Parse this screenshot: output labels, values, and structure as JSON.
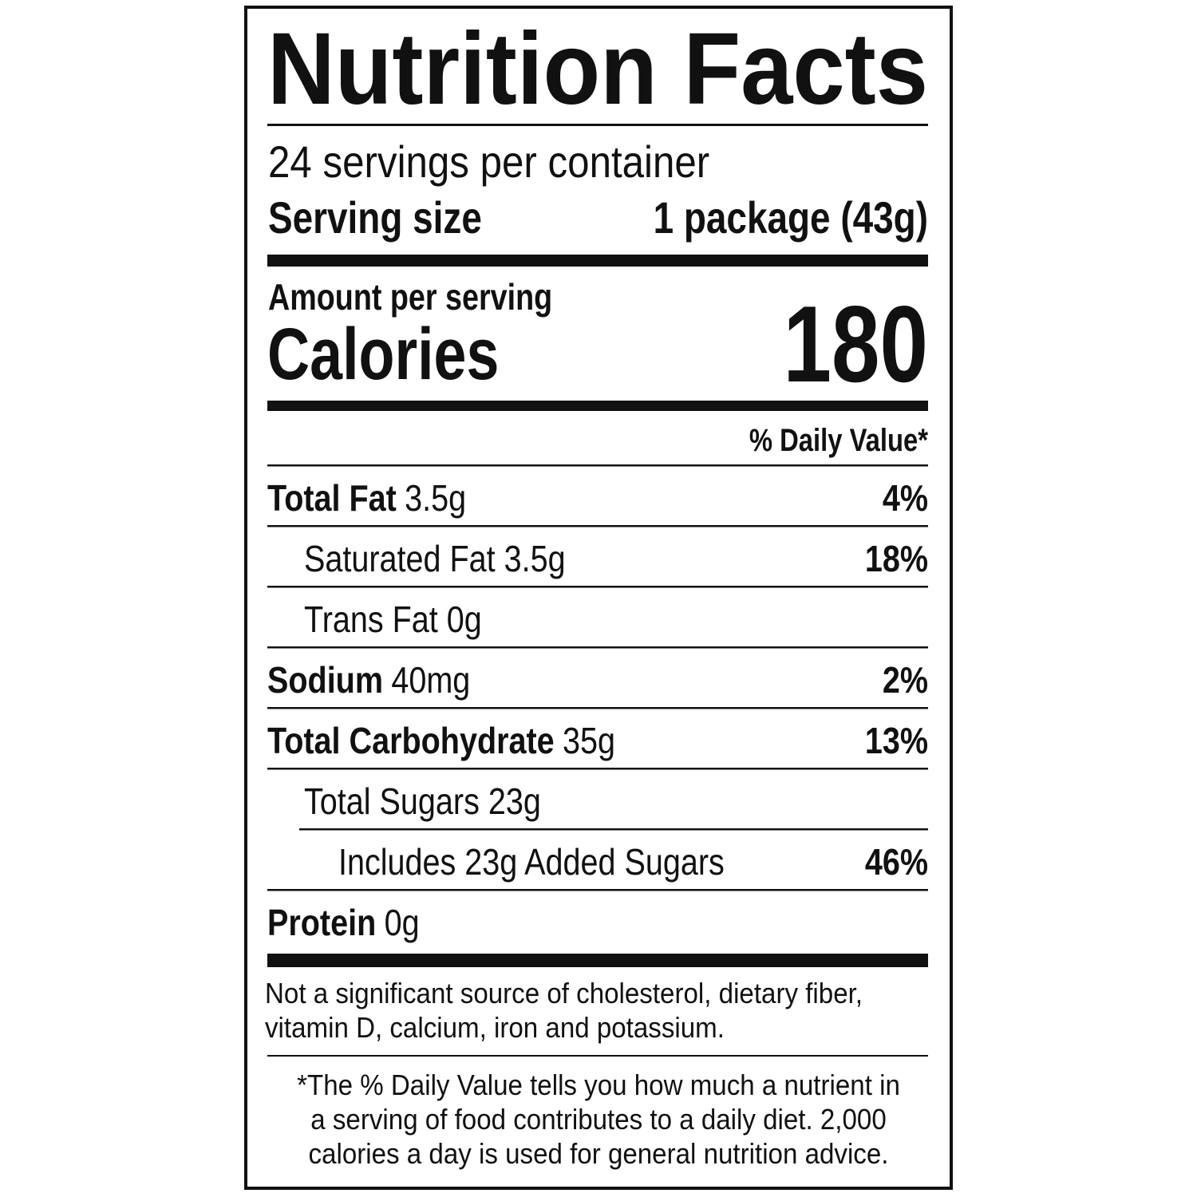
{
  "title": "Nutrition Facts",
  "servings": "24 servings per container",
  "serving_size": {
    "label": "Serving size",
    "value": "1 package (43g)"
  },
  "amount_per_serving": "Amount per serving",
  "calories": {
    "label": "Calories",
    "value": 180
  },
  "daily_value_header": "% Daily Value*",
  "nutrients": [
    {
      "name": "Total Fat",
      "amount": "3.5g",
      "dv": "4%"
    },
    {
      "name": "Saturated Fat 3.5g",
      "dv": "18%"
    },
    {
      "name": "Trans Fat 0g"
    },
    {
      "name": "Sodium",
      "amount": "40mg",
      "dv": "2%"
    },
    {
      "name": "Total Carbohydrate",
      "amount": "35g",
      "dv": "13%"
    },
    {
      "name": "Total Sugars 23g"
    },
    {
      "name": "Includes 23g Added Sugars",
      "dv": "46%"
    },
    {
      "name": "Protein",
      "amount": "0g"
    }
  ],
  "footnote": [
    "Not a significant source of cholesterol, dietary fiber,",
    "vitamin D, calcium, iron and potassium."
  ],
  "dv_note": [
    "*The % Daily Value tells you how much a nutrient in",
    "a serving of food contributes to a daily diet. 2,000",
    "calories a day is used for general nutrition advice."
  ]
}
